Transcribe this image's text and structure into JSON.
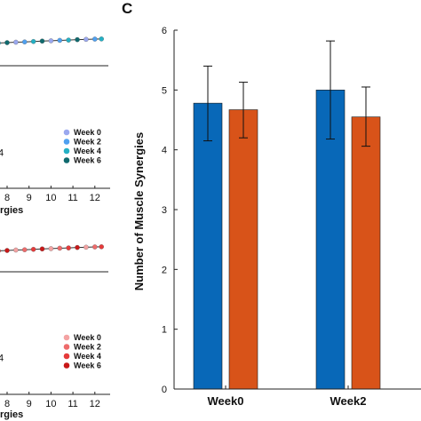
{
  "colors": {
    "blue_bar": "#0868b8",
    "orange_bar": "#d85319",
    "axis": "#222222",
    "week0_blue": "#9aa8ef",
    "week2_blue": "#4fa0f0",
    "week4_blue": "#24b0c4",
    "week6_blue": "#0f6a6e",
    "week0_red": "#f4a3a3",
    "week2_red": "#ee6b6b",
    "week4_red": "#e53a3a",
    "week6_red": "#c81818"
  },
  "left_panels": {
    "top": {
      "legend": [
        "Week 0",
        "Week 2",
        "Week 4",
        "Week 6"
      ],
      "legend_icons": [
        "week0-blue-marker",
        "week2-blue-marker",
        "week4-blue-marker",
        "week6-blue-marker"
      ],
      "x_ticks": [
        "8",
        "9",
        "10",
        "11",
        "12"
      ],
      "xlabel_fragment": "rgies"
    },
    "bottom": {
      "legend": [
        "Week 0",
        "Week 2",
        "Week 4",
        "Week 6"
      ],
      "legend_icons": [
        "week0-red-marker",
        "week2-red-marker",
        "week4-red-marker",
        "week6-red-marker"
      ],
      "x_ticks": [
        "8",
        "9",
        "10",
        "11",
        "12"
      ],
      "xlabel_fragment": "rgies"
    }
  },
  "chart_data": [
    {
      "panel": "C",
      "type": "bar",
      "title": "",
      "xlabel": "",
      "ylabel": "Number of Muscle Synergies",
      "categories": [
        "Week0",
        "Week2"
      ],
      "ylim": [
        0,
        6
      ],
      "yticks": [
        "0",
        "1",
        "2",
        "3",
        "4",
        "5",
        "6"
      ],
      "series": [
        {
          "values": [
            4.78,
            5.0
          ],
          "err_low": [
            4.15,
            4.18
          ],
          "err_high": [
            5.4,
            5.82
          ]
        },
        {
          "values": [
            4.67,
            4.55
          ],
          "err_low": [
            4.2,
            4.06
          ],
          "err_high": [
            5.13,
            5.05
          ]
        }
      ],
      "grid": false,
      "legend": "none"
    },
    {
      "panel": "left-top",
      "type": "line",
      "x": [
        5.2,
        5.6,
        6.0,
        6.4,
        6.8,
        7.2,
        7.6,
        8.0,
        8.4,
        8.8,
        9.2,
        9.6,
        10.0,
        10.4,
        10.8,
        11.2,
        11.6,
        12.0,
        12.3
      ],
      "y": [
        0.2,
        0.6,
        1.0,
        1.3,
        1.6,
        1.9,
        2.2,
        2.5,
        2.8,
        3.0,
        3.3,
        3.6,
        3.8,
        4.1,
        4.3,
        4.6,
        4.8,
        5.0,
        5.1
      ]
    },
    {
      "panel": "left-bottom",
      "type": "line",
      "x": [
        5.2,
        5.6,
        6.0,
        6.4,
        6.8,
        7.2,
        7.6,
        8.0,
        8.4,
        8.8,
        9.2,
        9.6,
        10.0,
        10.4,
        10.8,
        11.2,
        11.6,
        12.0,
        12.3
      ],
      "y": [
        0.2,
        0.6,
        1.0,
        1.3,
        1.6,
        1.9,
        2.2,
        2.5,
        2.8,
        3.0,
        3.3,
        3.6,
        3.8,
        4.1,
        4.3,
        4.6,
        4.8,
        5.0,
        5.1
      ]
    }
  ]
}
